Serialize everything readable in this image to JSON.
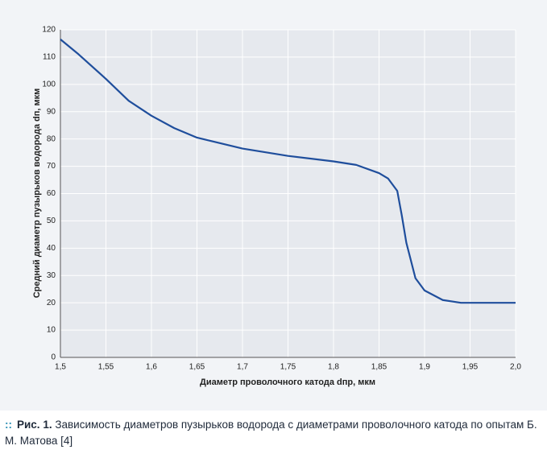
{
  "chart_data": {
    "type": "line",
    "xlabel": "Диаметр проволочного катода dпр, мкм",
    "ylabel": "Средний диаметр пузырьков водорода dп, мкм",
    "x": [
      1.5,
      1.52,
      1.55,
      1.575,
      1.6,
      1.625,
      1.65,
      1.7,
      1.75,
      1.8,
      1.825,
      1.85,
      1.86,
      1.87,
      1.875,
      1.88,
      1.89,
      1.9,
      1.92,
      1.94,
      1.96,
      2.0
    ],
    "series": [
      {
        "color": "#1f4e9c",
        "values": [
          116.5,
          111,
          102,
          94,
          88.5,
          84,
          80.5,
          76.5,
          73.8,
          71.8,
          70.5,
          67.5,
          65.5,
          61,
          52,
          42,
          29,
          24.5,
          21,
          20,
          20,
          20
        ]
      }
    ],
    "xlim": [
      1.5,
      2.0
    ],
    "xticks": [
      {
        "value": 1.5,
        "label": "1,5"
      },
      {
        "value": 1.55,
        "label": "1,55"
      },
      {
        "value": 1.6,
        "label": "1,6"
      },
      {
        "value": 1.65,
        "label": "1,65"
      },
      {
        "value": 1.7,
        "label": "1,7"
      },
      {
        "value": 1.75,
        "label": "1,75"
      },
      {
        "value": 1.8,
        "label": "1,8"
      },
      {
        "value": 1.85,
        "label": "1,85"
      },
      {
        "value": 1.9,
        "label": "1,9"
      },
      {
        "value": 1.95,
        "label": "1,95"
      },
      {
        "value": 2.0,
        "label": "2,0"
      }
    ],
    "ylim": [
      0,
      120
    ],
    "yticks": [
      0,
      10,
      20,
      30,
      40,
      50,
      60,
      70,
      80,
      90,
      100,
      110,
      120
    ],
    "grid": true
  },
  "caption": {
    "label": "Рис. 1.",
    "text": "Зависимость диаметров пузырьков водорода с диаметрами проволочного катода по опытам Б. М. Матова [4]"
  }
}
